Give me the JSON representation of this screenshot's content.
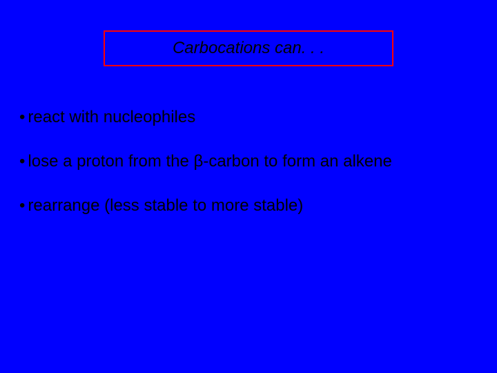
{
  "slide": {
    "background_color": "#0000ff",
    "title_box": {
      "border_color": "#ff0000",
      "border_width": 2,
      "text": "Carbocations can. . .",
      "font_style": "italic",
      "font_size": 24,
      "text_color": "#000000"
    },
    "bullets": {
      "font_size": 24,
      "text_color": "#000000",
      "items": [
        "react with nucleophiles",
        "lose a proton from the β-carbon to form an alkene",
        "rearrange (less stable to more stable)"
      ]
    }
  }
}
